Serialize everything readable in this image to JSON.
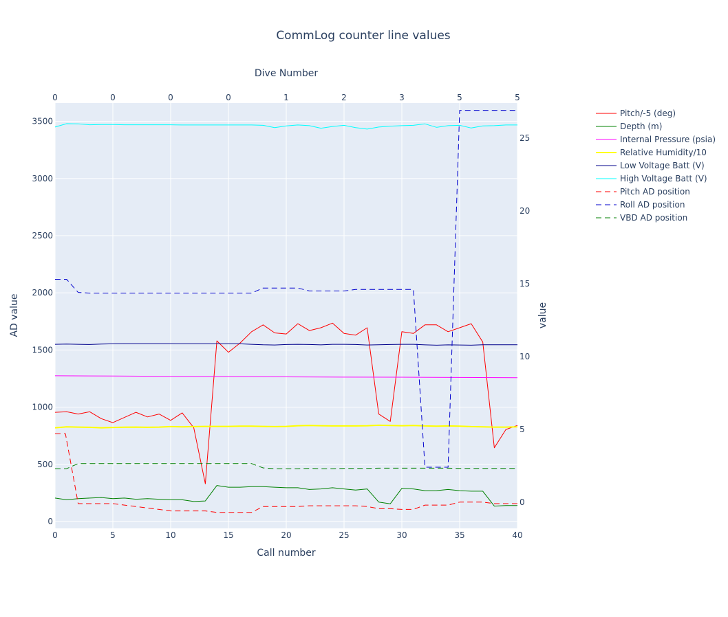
{
  "chart_data": {
    "type": "line",
    "title": "CommLog counter line values",
    "xlabel": "Call number",
    "x2label": "Dive Number",
    "ylabel": "AD value",
    "y2label": "value",
    "xlim": [
      0,
      40
    ],
    "ylim": [
      -60,
      3660
    ],
    "y2lim": [
      -1.8,
      27.4
    ],
    "x_ticks": [
      0,
      5,
      10,
      15,
      20,
      25,
      30,
      35,
      40
    ],
    "x2_ticks": [
      {
        "x": 0,
        "label": "0"
      },
      {
        "x": 5,
        "label": "0"
      },
      {
        "x": 10,
        "label": "0"
      },
      {
        "x": 15,
        "label": "0"
      },
      {
        "x": 20,
        "label": "1"
      },
      {
        "x": 25,
        "label": "2"
      },
      {
        "x": 30,
        "label": "3"
      },
      {
        "x": 35,
        "label": "5"
      },
      {
        "x": 40,
        "label": "5"
      }
    ],
    "y_ticks": [
      0,
      500,
      1000,
      1500,
      2000,
      2500,
      3000,
      3500
    ],
    "y2_ticks": [
      0,
      5,
      10,
      15,
      20,
      25
    ],
    "grid": true,
    "legend_position": "right",
    "series": [
      {
        "name": "Pitch/-5 (deg)",
        "axis": "y",
        "color": "#ff0000",
        "dash": "solid",
        "width": 1,
        "x": [
          0,
          1,
          2,
          3,
          4,
          5,
          6,
          7,
          8,
          9,
          10,
          11,
          12,
          13,
          14,
          15,
          16,
          17,
          18,
          19,
          20,
          21,
          22,
          23,
          24,
          25,
          26,
          27,
          28,
          29,
          30,
          31,
          32,
          33,
          34,
          35,
          36,
          37,
          38,
          39,
          40
        ],
        "y": [
          955,
          960,
          940,
          960,
          900,
          865,
          910,
          955,
          915,
          940,
          885,
          950,
          820,
          330,
          1580,
          1480,
          1560,
          1660,
          1720,
          1650,
          1640,
          1730,
          1670,
          1695,
          1735,
          1645,
          1630,
          1695,
          940,
          875,
          1660,
          1645,
          1720,
          1720,
          1660,
          1695,
          1730,
          1570,
          645,
          805,
          840
        ]
      },
      {
        "name": "Depth (m)",
        "axis": "y",
        "color": "#008000",
        "dash": "solid",
        "width": 1,
        "x": [
          0,
          1,
          2,
          3,
          4,
          5,
          6,
          7,
          8,
          9,
          10,
          11,
          12,
          13,
          14,
          15,
          16,
          17,
          18,
          19,
          20,
          21,
          22,
          23,
          24,
          25,
          26,
          27,
          28,
          29,
          30,
          31,
          32,
          33,
          34,
          35,
          36,
          37,
          38,
          39,
          40
        ],
        "y": [
          205,
          190,
          200,
          205,
          210,
          200,
          205,
          195,
          200,
          195,
          190,
          190,
          175,
          180,
          315,
          300,
          300,
          305,
          305,
          300,
          295,
          295,
          280,
          285,
          295,
          285,
          275,
          285,
          170,
          155,
          290,
          285,
          270,
          270,
          280,
          270,
          265,
          265,
          135,
          140,
          140
        ]
      },
      {
        "name": "Internal Pressure (psia)",
        "axis": "y",
        "color": "#ff00ff",
        "dash": "solid",
        "width": 1,
        "x": [
          0,
          5,
          10,
          15,
          20,
          25,
          30,
          35,
          40
        ],
        "y": [
          1275,
          1273,
          1270,
          1268,
          1265,
          1263,
          1262,
          1260,
          1258
        ]
      },
      {
        "name": "Relative Humidity/10",
        "axis": "y",
        "color": "#ffff00",
        "dash": "solid",
        "width": 2,
        "x": [
          0,
          1,
          2,
          3,
          4,
          5,
          6,
          7,
          8,
          9,
          10,
          11,
          12,
          13,
          14,
          15,
          16,
          17,
          18,
          19,
          20,
          21,
          22,
          23,
          24,
          25,
          26,
          27,
          28,
          29,
          30,
          31,
          32,
          33,
          34,
          35,
          36,
          37,
          38,
          39,
          40
        ],
        "y": [
          820,
          828,
          826,
          824,
          820,
          823,
          825,
          826,
          824,
          826,
          830,
          828,
          830,
          832,
          832,
          832,
          834,
          834,
          832,
          830,
          832,
          838,
          840,
          838,
          836,
          836,
          836,
          838,
          842,
          840,
          838,
          840,
          836,
          834,
          836,
          834,
          830,
          828,
          826,
          826,
          828
        ]
      },
      {
        "name": "Low Voltage Batt (V)",
        "axis": "y",
        "color": "#00008b",
        "dash": "solid",
        "width": 1,
        "x": [
          0,
          1,
          2,
          3,
          4,
          5,
          6,
          7,
          8,
          9,
          10,
          11,
          12,
          13,
          14,
          15,
          16,
          17,
          18,
          19,
          20,
          21,
          22,
          23,
          24,
          25,
          26,
          27,
          28,
          29,
          30,
          31,
          32,
          33,
          34,
          35,
          36,
          37,
          38,
          39,
          40
        ],
        "y": [
          1550,
          1552,
          1550,
          1548,
          1552,
          1554,
          1555,
          1555,
          1555,
          1555,
          1555,
          1554,
          1554,
          1554,
          1554,
          1554,
          1554,
          1550,
          1546,
          1544,
          1548,
          1550,
          1548,
          1545,
          1550,
          1550,
          1548,
          1544,
          1546,
          1548,
          1550,
          1550,
          1545,
          1542,
          1545,
          1544,
          1542,
          1546,
          1546,
          1546,
          1546
        ]
      },
      {
        "name": "High Voltage Batt (V)",
        "axis": "y",
        "color": "#00ffff",
        "dash": "solid",
        "width": 1,
        "x": [
          0,
          1,
          2,
          3,
          4,
          5,
          6,
          7,
          8,
          9,
          10,
          11,
          12,
          13,
          14,
          15,
          16,
          17,
          18,
          19,
          20,
          21,
          22,
          23,
          24,
          25,
          26,
          27,
          28,
          29,
          30,
          31,
          32,
          33,
          34,
          35,
          36,
          37,
          38,
          39,
          40
        ],
        "y": [
          3450,
          3480,
          3478,
          3470,
          3472,
          3472,
          3470,
          3470,
          3470,
          3470,
          3470,
          3468,
          3468,
          3468,
          3468,
          3468,
          3468,
          3468,
          3465,
          3445,
          3460,
          3468,
          3462,
          3440,
          3455,
          3465,
          3445,
          3432,
          3450,
          3458,
          3462,
          3465,
          3478,
          3448,
          3462,
          3465,
          3442,
          3460,
          3462,
          3468,
          3468
        ]
      },
      {
        "name": "Pitch AD position",
        "axis": "y2",
        "color": "#ff0000",
        "dash": "dash",
        "width": 1,
        "x": [
          0,
          0.9,
          2,
          3,
          4,
          5,
          6,
          7,
          8,
          9,
          10,
          11,
          12,
          13,
          14,
          15,
          16,
          17,
          18,
          19,
          20,
          21,
          22,
          23,
          24,
          25,
          26,
          27,
          28,
          29,
          30,
          31,
          32,
          33,
          34,
          35,
          36,
          37,
          38,
          39,
          40
        ],
        "y": [
          4.7,
          4.7,
          -0.1,
          -0.1,
          -0.1,
          -0.1,
          -0.2,
          -0.3,
          -0.4,
          -0.5,
          -0.6,
          -0.6,
          -0.6,
          -0.6,
          -0.7,
          -0.7,
          -0.7,
          -0.7,
          -0.3,
          -0.3,
          -0.3,
          -0.3,
          -0.25,
          -0.25,
          -0.25,
          -0.25,
          -0.25,
          -0.3,
          -0.45,
          -0.45,
          -0.5,
          -0.5,
          -0.2,
          -0.2,
          -0.2,
          0.0,
          0.0,
          0.0,
          -0.1,
          -0.1,
          -0.1
        ]
      },
      {
        "name": "Roll AD position",
        "axis": "y2",
        "color": "#0000cd",
        "dash": "dash",
        "width": 1,
        "x": [
          0,
          1,
          2,
          3,
          4,
          5,
          6,
          7,
          8,
          9,
          10,
          11,
          12,
          13,
          14,
          15,
          16,
          17,
          18,
          19,
          20,
          21,
          22,
          23,
          24,
          25,
          26,
          27,
          28,
          29,
          30,
          31,
          32,
          33,
          34,
          35,
          36,
          37,
          38,
          39,
          40
        ],
        "y": [
          15.3,
          15.3,
          14.4,
          14.35,
          14.35,
          14.35,
          14.35,
          14.35,
          14.35,
          14.35,
          14.35,
          14.35,
          14.35,
          14.35,
          14.35,
          14.35,
          14.35,
          14.35,
          14.7,
          14.7,
          14.7,
          14.7,
          14.5,
          14.5,
          14.5,
          14.5,
          14.6,
          14.6,
          14.6,
          14.6,
          14.6,
          14.6,
          2.4,
          2.4,
          2.4,
          26.9,
          26.9,
          26.9,
          26.9,
          26.9,
          26.9
        ]
      },
      {
        "name": "VBD AD position",
        "axis": "y2",
        "color": "#008000",
        "dash": "dash",
        "width": 1,
        "x": [
          0,
          1,
          2,
          3,
          4,
          5,
          6,
          7,
          8,
          9,
          10,
          11,
          12,
          13,
          14,
          15,
          16,
          17,
          18,
          19,
          20,
          21,
          22,
          23,
          24,
          25,
          26,
          27,
          28,
          29,
          30,
          31,
          32,
          33,
          34,
          35,
          36,
          37,
          38,
          39,
          40
        ],
        "y": [
          2.3,
          2.3,
          2.65,
          2.65,
          2.65,
          2.65,
          2.65,
          2.65,
          2.65,
          2.65,
          2.65,
          2.65,
          2.65,
          2.65,
          2.65,
          2.65,
          2.65,
          2.65,
          2.35,
          2.3,
          2.3,
          2.3,
          2.32,
          2.3,
          2.3,
          2.32,
          2.32,
          2.32,
          2.33,
          2.33,
          2.33,
          2.33,
          2.33,
          2.33,
          2.33,
          2.32,
          2.32,
          2.32,
          2.32,
          2.32,
          2.32
        ]
      }
    ]
  }
}
